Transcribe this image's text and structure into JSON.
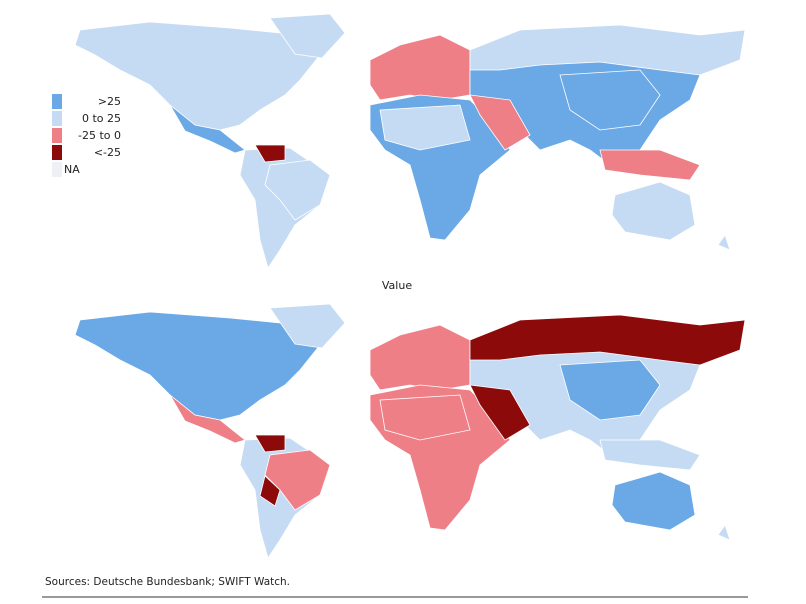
{
  "legend": {
    "items": [
      {
        "label": ">25",
        "color": "#6aa9e6"
      },
      {
        "label": "0 to 25",
        "color": "#c5dbf3"
      },
      {
        "label": "-25 to 0",
        "color": "#ee7f87"
      },
      {
        "label": "<-25",
        "color": "#8c0a0a"
      },
      {
        "label": "NA",
        "color": "#eef0f6"
      }
    ]
  },
  "map_title": "Value",
  "source": "Sources: Deutsche Bundesbank; SWIFT Watch."
}
